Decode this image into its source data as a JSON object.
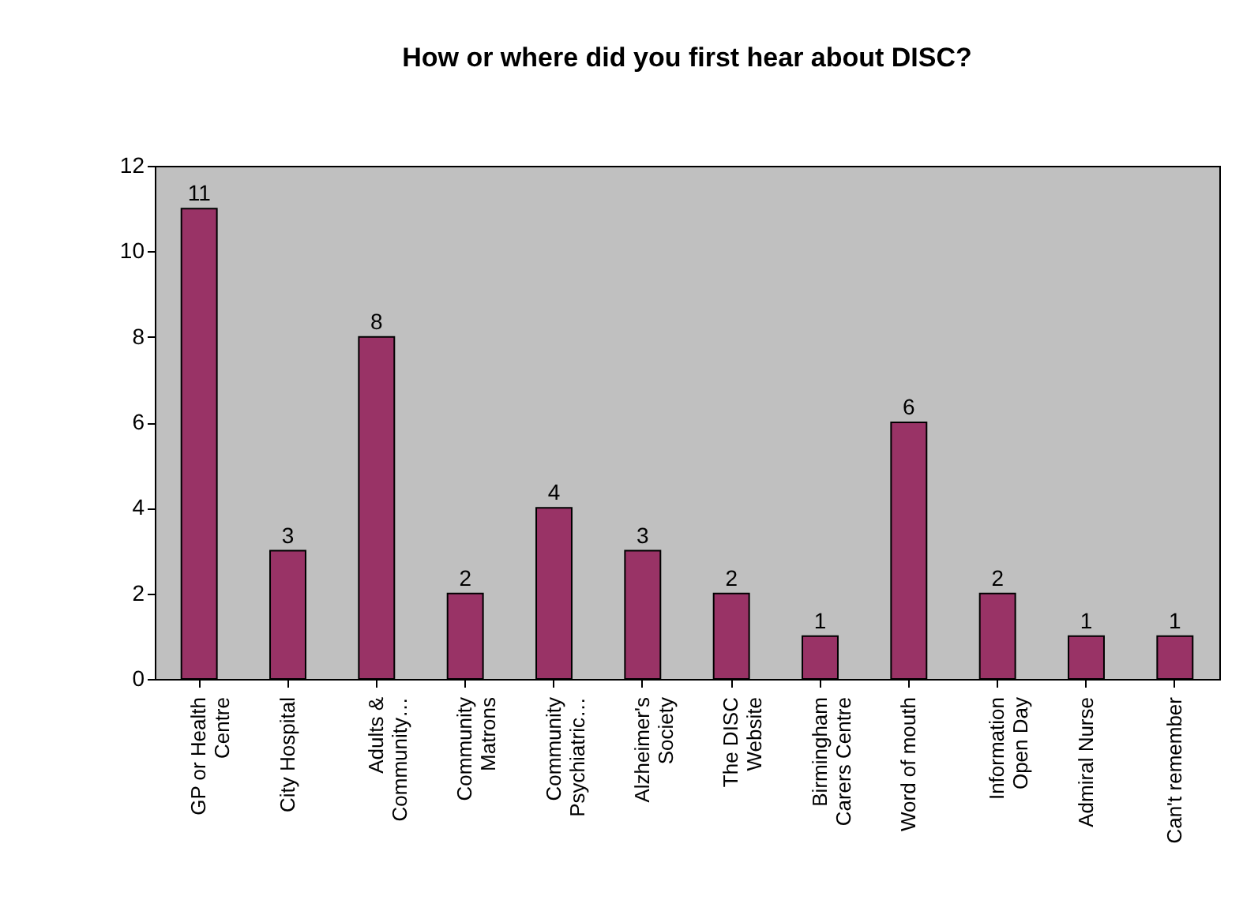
{
  "chart_data": {
    "type": "bar",
    "title": "How or where did you first hear about DISC?",
    "categories": [
      "GP or Health Centre",
      "City Hospital",
      "Adults & Community…",
      "Community Matrons",
      "Community Psychiatric…",
      "Alzheimer's Society",
      "The DISC Website",
      "Birmingham Carers Centre",
      "Word of mouth",
      "Information Open Day",
      "Admiral Nurse",
      "Can't remember"
    ],
    "values": [
      11,
      3,
      8,
      2,
      4,
      3,
      2,
      1,
      6,
      2,
      1,
      1
    ],
    "color": "#993366",
    "ylim": [
      0,
      12
    ],
    "yticks": [
      0,
      2,
      4,
      6,
      8,
      10,
      12
    ],
    "data_labels": true,
    "grid": false
  }
}
